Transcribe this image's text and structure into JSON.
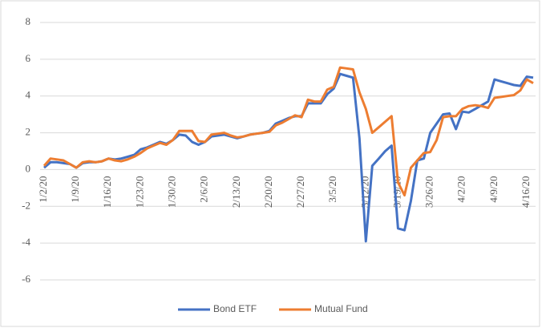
{
  "chart_data": {
    "type": "line",
    "categories": [
      "1/2/20",
      null,
      null,
      null,
      null,
      "1/9/20",
      null,
      null,
      null,
      null,
      "1/16/20",
      null,
      null,
      null,
      null,
      "1/23/20",
      null,
      null,
      null,
      null,
      "1/30/20",
      null,
      null,
      null,
      null,
      "2/6/20",
      null,
      null,
      null,
      null,
      "2/13/20",
      null,
      null,
      null,
      null,
      "2/20/20",
      null,
      null,
      null,
      null,
      "2/27/20",
      null,
      null,
      null,
      null,
      "3/5/20",
      null,
      null,
      null,
      null,
      "3/12/20",
      null,
      null,
      null,
      null,
      "3/19/20",
      null,
      null,
      null,
      null,
      "3/26/20",
      null,
      null,
      null,
      null,
      "4/2/20",
      null,
      null,
      null,
      null,
      "4/9/20",
      null,
      null,
      null,
      null,
      "4/16/20",
      null
    ],
    "series": [
      {
        "name": "Bond ETF",
        "color": "#4472c4",
        "values": [
          0.1,
          0.4,
          0.4,
          0.35,
          0.3,
          0.1,
          0.35,
          0.4,
          0.4,
          0.45,
          0.6,
          0.55,
          0.6,
          0.7,
          0.8,
          1.1,
          1.2,
          1.35,
          1.5,
          1.4,
          1.6,
          1.9,
          1.85,
          1.5,
          1.35,
          1.5,
          1.8,
          1.85,
          1.9,
          1.8,
          1.7,
          1.8,
          1.9,
          1.95,
          2.0,
          2.1,
          2.5,
          2.65,
          2.8,
          2.9,
          2.9,
          3.6,
          3.6,
          3.6,
          4.1,
          4.4,
          5.2,
          5.1,
          5.0,
          1.7,
          -3.9,
          0.2,
          0.6,
          1.0,
          1.3,
          -3.2,
          -3.3,
          -1.7,
          0.5,
          0.6,
          2.0,
          2.5,
          3.0,
          3.05,
          2.2,
          3.15,
          3.1,
          3.3,
          3.5,
          3.7,
          4.9,
          4.8,
          4.7,
          4.6,
          4.55,
          5.05,
          5.0
        ]
      },
      {
        "name": "Mutual Fund",
        "color": "#ed7d31",
        "values": [
          0.2,
          0.6,
          0.55,
          0.5,
          0.3,
          0.1,
          0.4,
          0.45,
          0.4,
          0.45,
          0.6,
          0.5,
          0.45,
          0.55,
          0.7,
          0.9,
          1.15,
          1.3,
          1.45,
          1.35,
          1.6,
          2.1,
          2.1,
          2.1,
          1.55,
          1.5,
          1.9,
          1.95,
          2.0,
          1.85,
          1.75,
          1.8,
          1.9,
          1.95,
          2.0,
          2.05,
          2.4,
          2.55,
          2.75,
          2.95,
          2.85,
          3.8,
          3.7,
          3.7,
          4.35,
          4.5,
          5.55,
          5.5,
          5.45,
          4.2,
          3.3,
          2.0,
          2.3,
          2.6,
          2.9,
          -0.7,
          -1.4,
          0.1,
          0.5,
          0.9,
          0.95,
          1.6,
          2.85,
          2.9,
          2.9,
          3.3,
          3.45,
          3.5,
          3.45,
          3.35,
          3.9,
          3.95,
          4.0,
          4.05,
          4.3,
          4.9,
          4.7
        ]
      }
    ],
    "ylim": [
      -6,
      8
    ],
    "yticks": [
      -6,
      -4,
      -2,
      0,
      2,
      4,
      6,
      8
    ],
    "grid": true,
    "legend": "bottom"
  }
}
